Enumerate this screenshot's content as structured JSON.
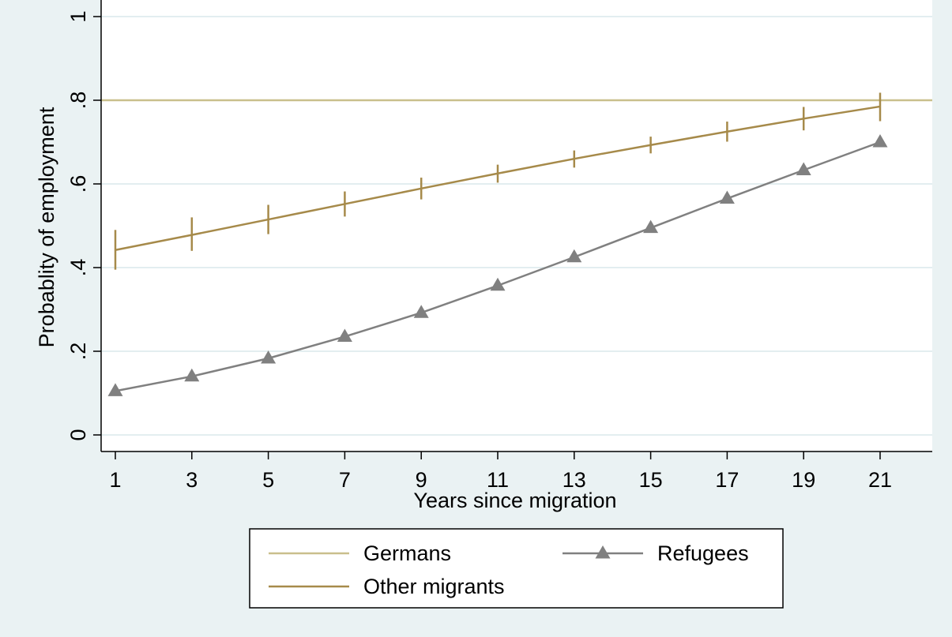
{
  "chart_data": {
    "type": "line",
    "xlabel": "Years since migration",
    "ylabel": "Probablity of employment",
    "xlim": [
      0,
      22.8
    ],
    "ylim": [
      0,
      1
    ],
    "x_ticks": [
      1,
      3,
      5,
      7,
      9,
      11,
      13,
      15,
      17,
      19,
      21
    ],
    "x_tick_labels": [
      "1",
      "3",
      "5",
      "7",
      "9",
      "11",
      "13",
      "15",
      "17",
      "19",
      "21"
    ],
    "y_ticks": [
      0,
      0.2,
      0.4,
      0.6,
      0.8,
      1
    ],
    "y_tick_labels": [
      "0",
      ".2",
      ".4",
      ".6",
      ".8",
      "1"
    ],
    "grid": true,
    "legend_position": "bottom",
    "x": [
      1,
      3,
      5,
      7,
      9,
      11,
      13,
      15,
      17,
      19,
      21
    ],
    "series": [
      {
        "name": "Germans",
        "style": "hline",
        "color": "#c9bf8c",
        "values": [
          0.8,
          0.8,
          0.8,
          0.8,
          0.8,
          0.8,
          0.8,
          0.8,
          0.8,
          0.8,
          0.8
        ]
      },
      {
        "name": "Other migrants",
        "style": "line-ci",
        "color": "#a68a4a",
        "values": [
          0.442,
          0.478,
          0.515,
          0.552,
          0.589,
          0.625,
          0.66,
          0.693,
          0.725,
          0.756,
          0.785
        ],
        "ci_low": [
          0.395,
          0.44,
          0.48,
          0.522,
          0.563,
          0.603,
          0.639,
          0.673,
          0.701,
          0.728,
          0.75
        ],
        "ci_high": [
          0.49,
          0.52,
          0.55,
          0.582,
          0.615,
          0.646,
          0.68,
          0.713,
          0.749,
          0.784,
          0.818
        ]
      },
      {
        "name": "Refugees",
        "style": "line-triangle",
        "color": "#808080",
        "values": [
          0.105,
          0.14,
          0.183,
          0.235,
          0.292,
          0.357,
          0.425,
          0.495,
          0.565,
          0.633,
          0.7
        ]
      }
    ]
  }
}
